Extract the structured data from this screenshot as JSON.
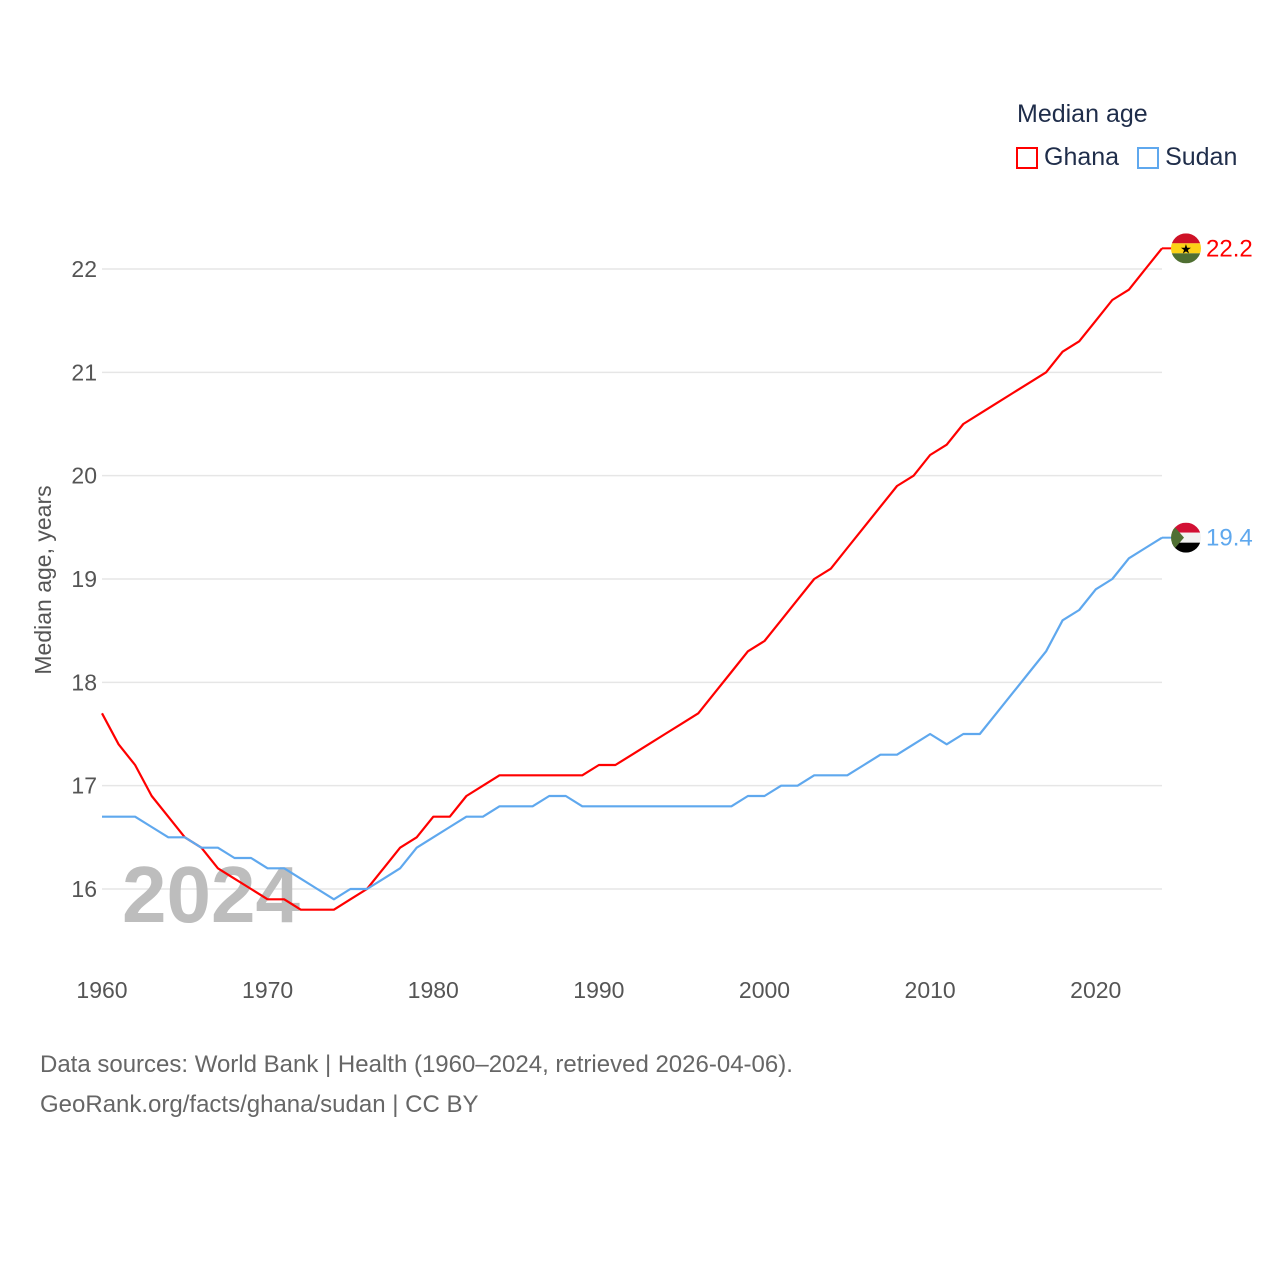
{
  "chart_data": {
    "type": "line",
    "title": "Median age",
    "ylabel": "Median age, years",
    "xlabel": "",
    "xlim": [
      1960,
      2024
    ],
    "ylim": [
      15.2,
      22.5
    ],
    "x_ticks": [
      1960,
      1970,
      1980,
      1990,
      2000,
      2010,
      2020
    ],
    "y_ticks": [
      16,
      17,
      18,
      19,
      20,
      21,
      22
    ],
    "grid": true,
    "legend_position": "top-right",
    "watermark_year": "2024",
    "x": [
      1960,
      1961,
      1962,
      1963,
      1964,
      1965,
      1966,
      1967,
      1968,
      1969,
      1970,
      1971,
      1972,
      1973,
      1974,
      1975,
      1976,
      1977,
      1978,
      1979,
      1980,
      1981,
      1982,
      1983,
      1984,
      1985,
      1986,
      1987,
      1988,
      1989,
      1990,
      1991,
      1992,
      1993,
      1994,
      1995,
      1996,
      1997,
      1998,
      1999,
      2000,
      2001,
      2002,
      2003,
      2004,
      2005,
      2006,
      2007,
      2008,
      2009,
      2010,
      2011,
      2012,
      2013,
      2014,
      2015,
      2016,
      2017,
      2018,
      2019,
      2020,
      2021,
      2022,
      2023,
      2024
    ],
    "series": [
      {
        "name": "Ghana",
        "color": "#ff0000",
        "end_label": "22.2",
        "values": [
          17.7,
          17.4,
          17.2,
          16.9,
          16.7,
          16.5,
          16.4,
          16.2,
          16.1,
          16.0,
          15.9,
          15.9,
          15.8,
          15.8,
          15.8,
          15.9,
          16.0,
          16.2,
          16.4,
          16.5,
          16.7,
          16.7,
          16.9,
          17.0,
          17.1,
          17.1,
          17.1,
          17.1,
          17.1,
          17.1,
          17.2,
          17.2,
          17.3,
          17.4,
          17.5,
          17.6,
          17.7,
          17.9,
          18.1,
          18.3,
          18.4,
          18.6,
          18.8,
          19.0,
          19.1,
          19.3,
          19.5,
          19.7,
          19.9,
          20.0,
          20.2,
          20.3,
          20.5,
          20.6,
          20.7,
          20.8,
          20.9,
          21.0,
          21.2,
          21.3,
          21.5,
          21.7,
          21.8,
          22.0,
          22.2
        ]
      },
      {
        "name": "Sudan",
        "color": "#5fa8ee",
        "end_label": "19.4",
        "values": [
          16.7,
          16.7,
          16.7,
          16.6,
          16.5,
          16.5,
          16.4,
          16.4,
          16.3,
          16.3,
          16.2,
          16.2,
          16.1,
          16.0,
          15.9,
          16.0,
          16.0,
          16.1,
          16.2,
          16.4,
          16.5,
          16.6,
          16.7,
          16.7,
          16.8,
          16.8,
          16.8,
          16.9,
          16.9,
          16.8,
          16.8,
          16.8,
          16.8,
          16.8,
          16.8,
          16.8,
          16.8,
          16.8,
          16.8,
          16.9,
          16.9,
          17.0,
          17.0,
          17.1,
          17.1,
          17.1,
          17.2,
          17.3,
          17.3,
          17.4,
          17.5,
          17.4,
          17.5,
          17.5,
          17.7,
          17.9,
          18.1,
          18.3,
          18.6,
          18.7,
          18.9,
          19.0,
          19.2,
          19.3,
          19.4
        ]
      }
    ]
  },
  "legend": {
    "title": "Median age",
    "items": [
      "Ghana",
      "Sudan"
    ]
  },
  "source": {
    "line1": "Data sources: World Bank | Health (1960–2024, retrieved 2026-04-06).",
    "line2": "GeoRank.org/facts/ghana/sudan | CC BY"
  }
}
